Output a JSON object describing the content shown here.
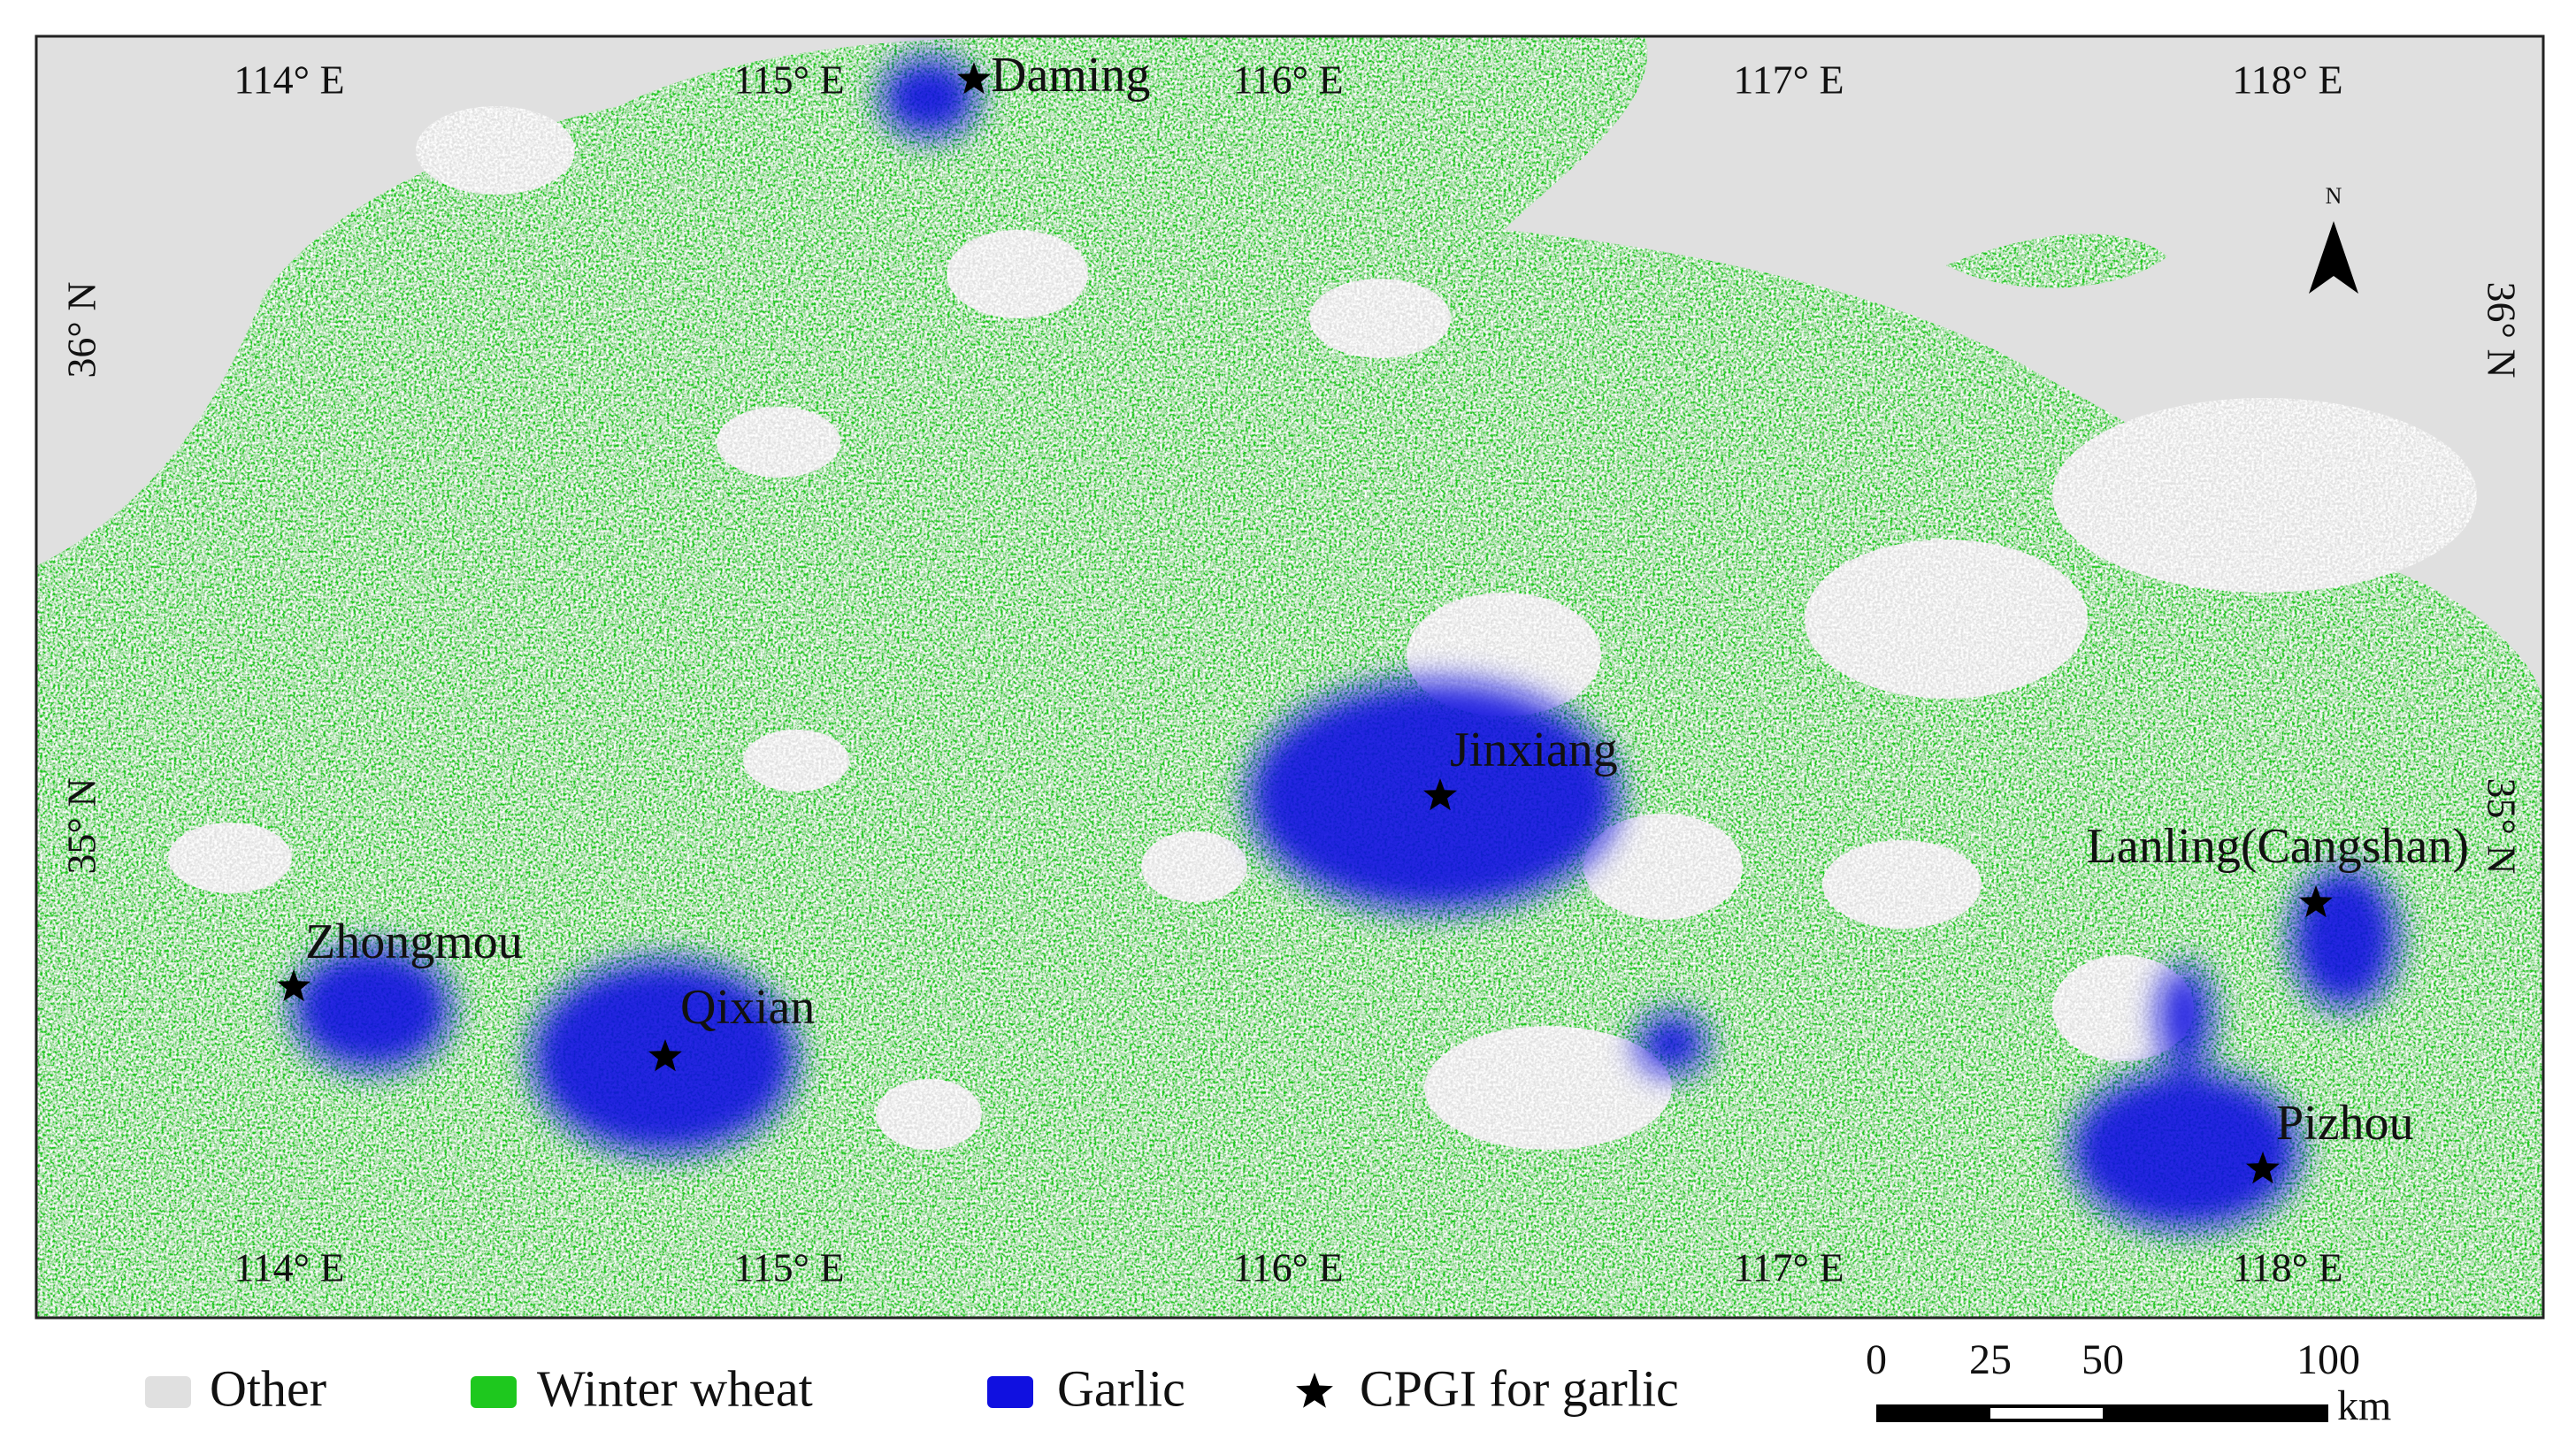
{
  "map": {
    "longitudes": [
      "114° E",
      "115° E",
      "116° E",
      "117° E",
      "118° E"
    ],
    "latitudes": [
      "36° N",
      "35° N"
    ],
    "places": [
      "Daming",
      "Jinxiang",
      "Lanling(Cangshan)",
      "Zhongmou",
      "Qixian",
      "Pizhou"
    ],
    "north": "N"
  },
  "legend": [
    {
      "label": "Other",
      "color": "#e0e0e0"
    },
    {
      "label": "Winter wheat",
      "color": "#1ec81e"
    },
    {
      "label": "Garlic",
      "color": "#1010e0"
    },
    {
      "label": "CPGI for garlic",
      "color": "#000000"
    }
  ],
  "scale_bar": {
    "labels": [
      "0",
      "25",
      "50",
      "100"
    ],
    "unit": "km"
  }
}
